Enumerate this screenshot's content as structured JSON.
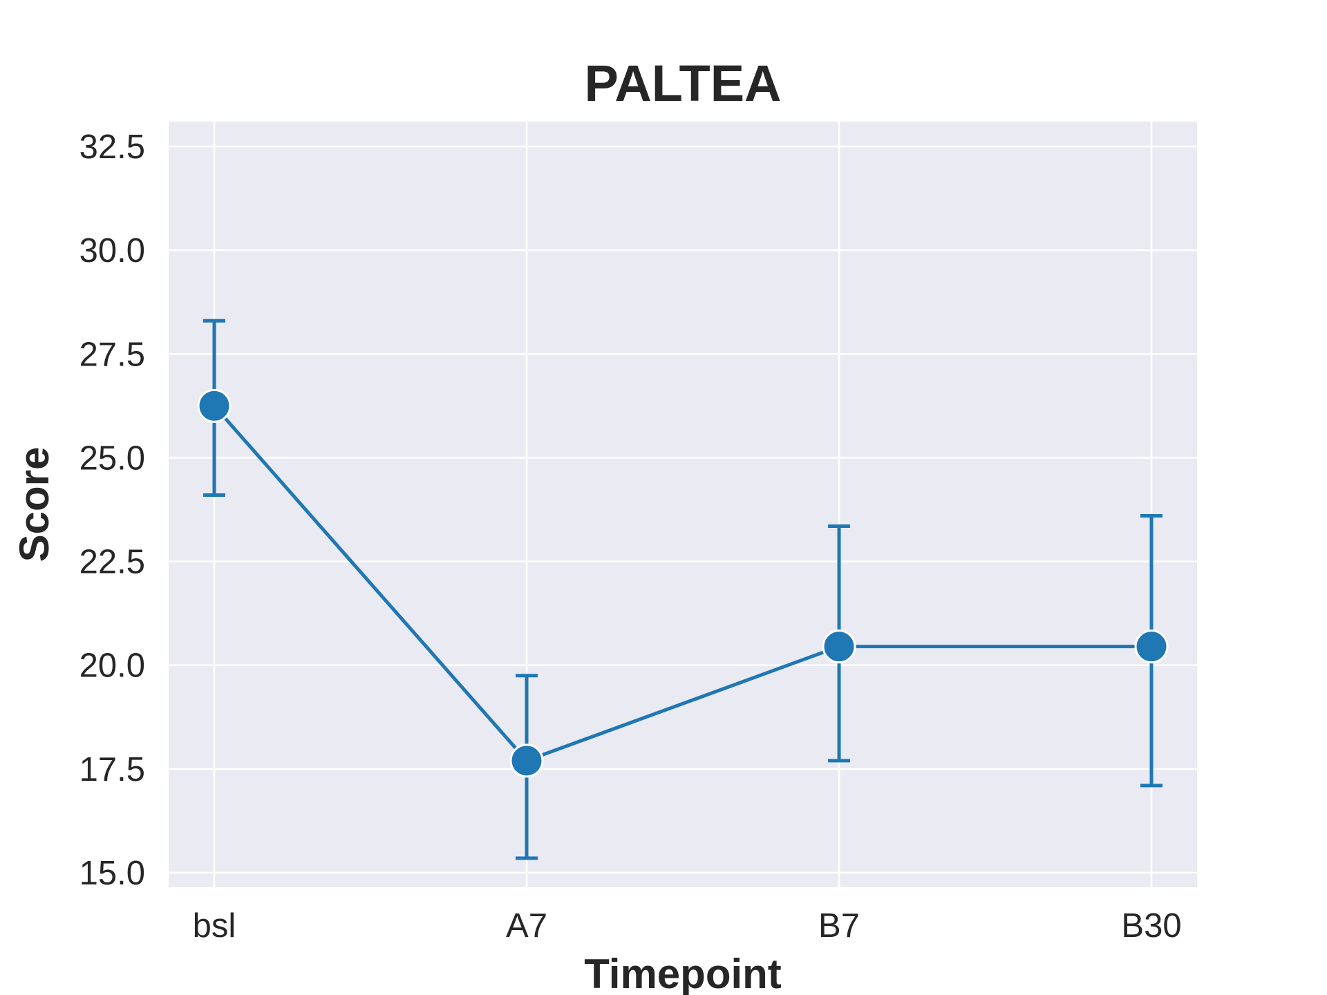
{
  "chart_data": {
    "type": "line",
    "title": "PALTEA",
    "xlabel": "Timepoint",
    "ylabel": "Score",
    "categories": [
      "bsl",
      "A7",
      "B7",
      "B30"
    ],
    "ylim": [
      14.65,
      33.1
    ],
    "yticks": [
      15.0,
      17.5,
      20.0,
      22.5,
      25.0,
      27.5,
      30.0,
      32.5
    ],
    "ytick_labels": [
      "15.0",
      "17.5",
      "20.0",
      "22.5",
      "25.0",
      "27.5",
      "30.0",
      "32.5"
    ],
    "series": [
      {
        "values": [
          26.25,
          17.7,
          20.45,
          20.45
        ],
        "error_low": [
          24.1,
          15.35,
          17.7,
          17.1
        ],
        "error_high": [
          28.3,
          19.75,
          23.35,
          23.6
        ]
      }
    ],
    "grid": true,
    "colors": {
      "series": "#1f77b4",
      "plot_background": "#eaeaf2",
      "grid": "#ffffff",
      "text": "#262626"
    }
  }
}
